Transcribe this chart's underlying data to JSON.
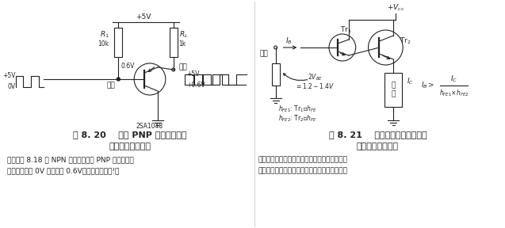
{
  "fig_width": 6.37,
  "fig_height": 2.88,
  "dpi": 100,
  "bg_color": "#ffffff",
  "left_panel": {
    "title_line1": "图 8. 20    使用 PNP 晶体管的射极",
    "title_line2": "跟随器型开关电路",
    "caption_line1": "（是把图 8.18 的 NPN 型晶体管换为 PNP 型的电路。",
    "caption_line2": "应该注意输入 0V 时输出是 0.6V，晶体管未饱和!）"
  },
  "right_panel": {
    "title_line1": "图 8. 21    采用达林顿连接的射极",
    "title_line2": "跟随器型开关电路",
    "caption_line1": "（当需要提供大的负载电流时经常采用达林顿连",
    "caption_line2": "接。最近的功率晶体管内部大多是达林顿型的）"
  }
}
